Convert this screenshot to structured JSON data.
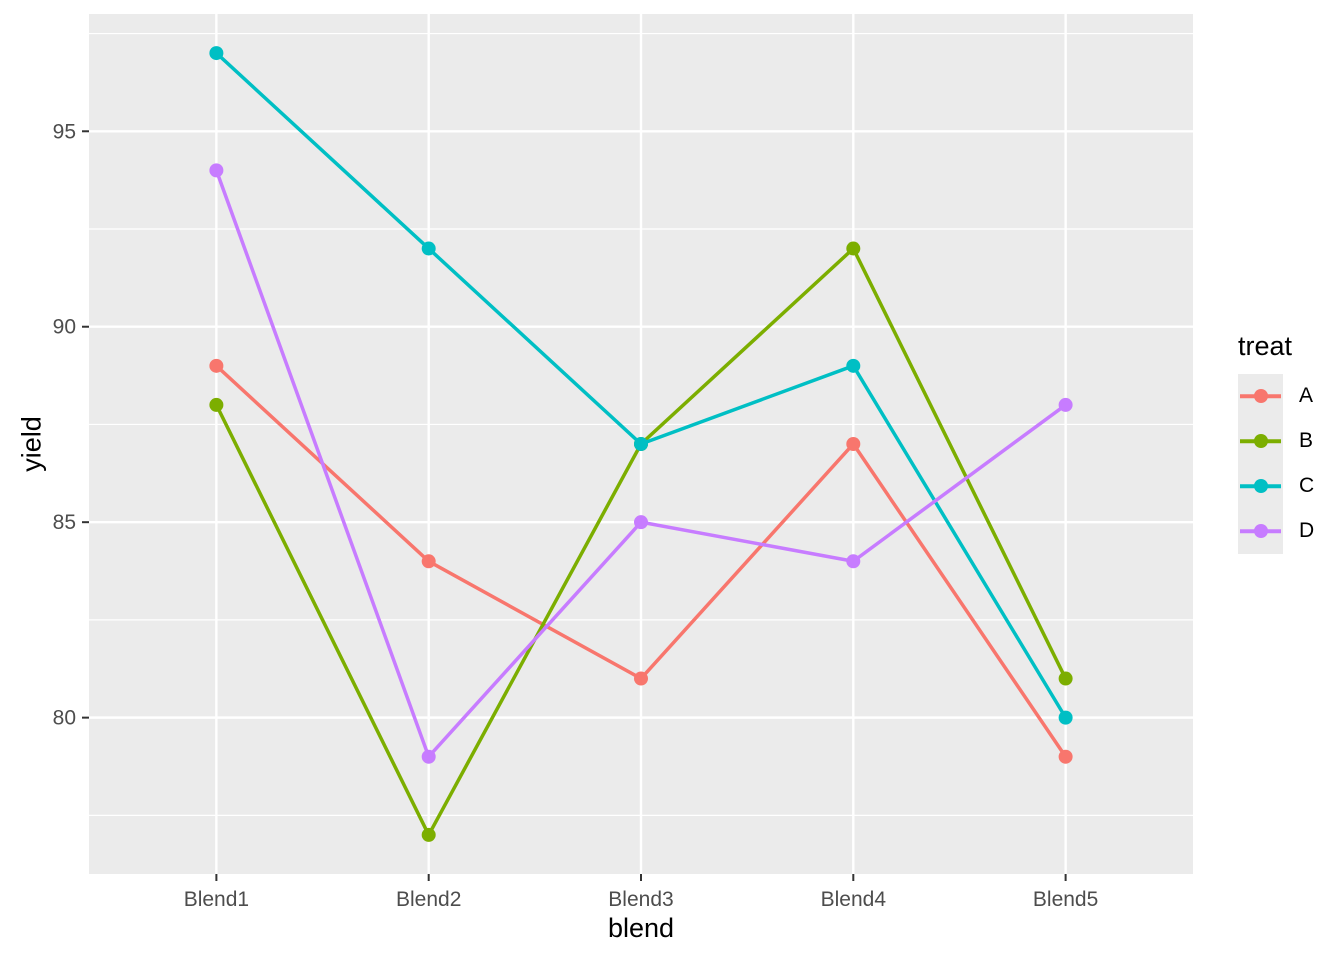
{
  "chart_data": {
    "type": "line",
    "title": "",
    "xlabel": "blend",
    "ylabel": "yield",
    "legend_title": "treat",
    "legend_position": "right",
    "categories": [
      "Blend1",
      "Blend2",
      "Blend3",
      "Blend4",
      "Blend5"
    ],
    "series": [
      {
        "name": "A",
        "color": "#F8766D",
        "values": [
          89,
          84,
          81,
          87,
          79
        ]
      },
      {
        "name": "B",
        "color": "#7CAE00",
        "values": [
          88,
          77,
          87,
          92,
          81
        ]
      },
      {
        "name": "C",
        "color": "#00BFC4",
        "values": [
          97,
          92,
          87,
          89,
          80
        ]
      },
      {
        "name": "D",
        "color": "#C77CFF",
        "values": [
          94,
          79,
          85,
          84,
          88
        ]
      }
    ],
    "ylim": [
      76,
      98
    ],
    "y_ticks": [
      80,
      85,
      90,
      95
    ],
    "y_minor_ticks": [
      77.5,
      82.5,
      87.5,
      92.5,
      97.5
    ],
    "grid": true,
    "colors": {
      "panel_background": "#EBEBEB",
      "grid": "#FFFFFF",
      "tick_mark": "#333333",
      "tick_label": "#4D4D4D",
      "axis_title": "#000000",
      "figure_background": "#FFFFFF"
    }
  }
}
